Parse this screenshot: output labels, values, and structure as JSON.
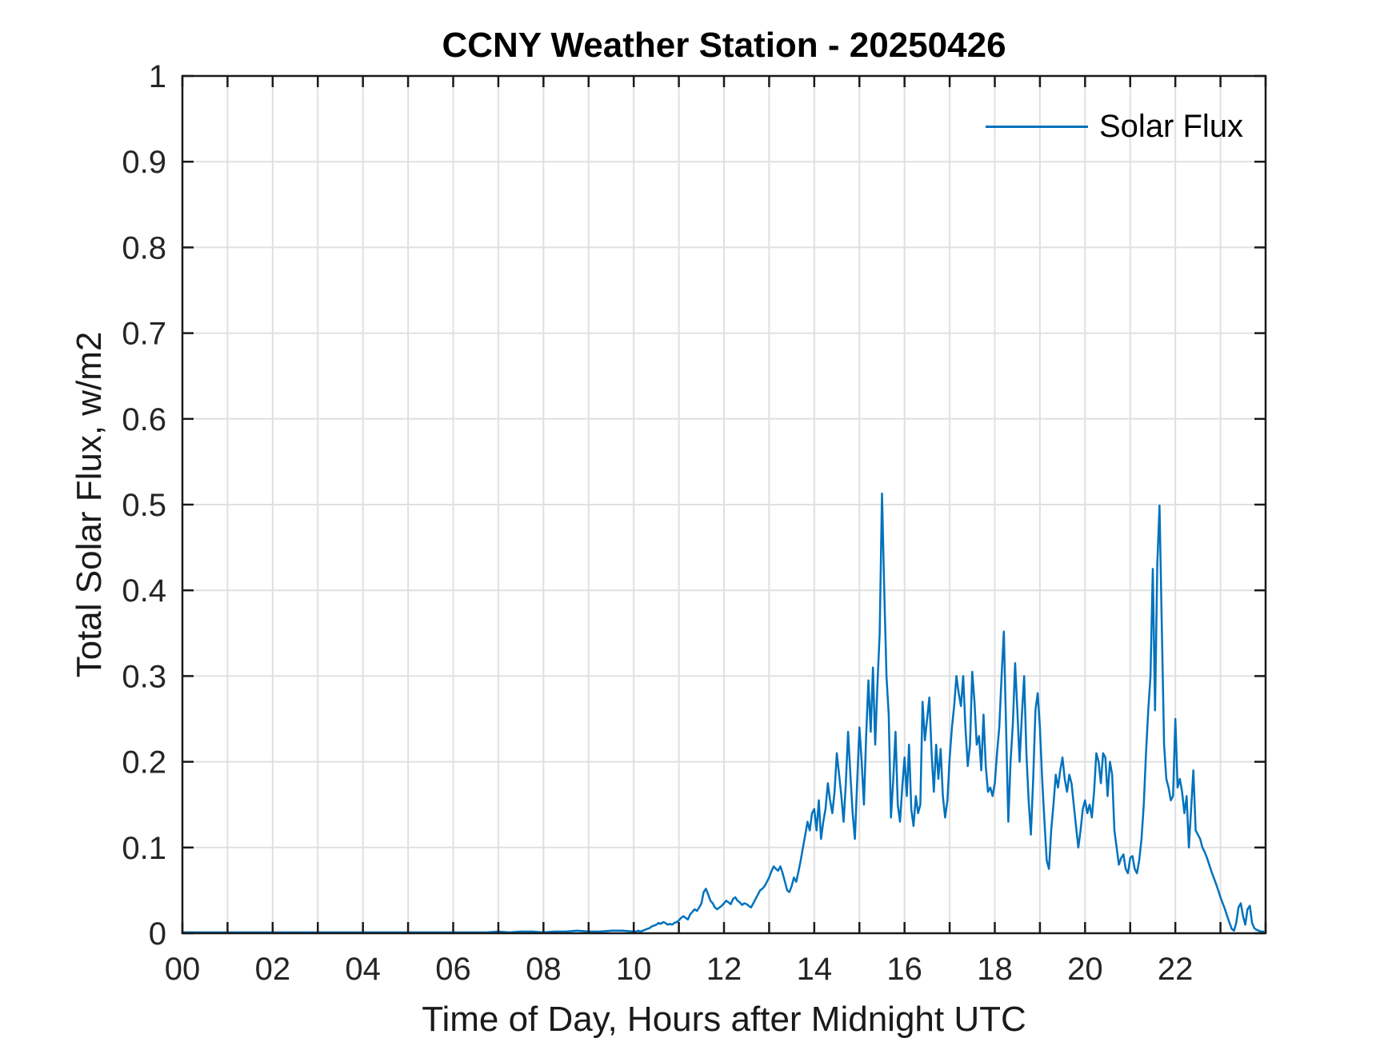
{
  "chart_data": {
    "type": "line",
    "title": "CCNY Weather Station - 20250426",
    "xlabel": "Time of Day, Hours after Midnight UTC",
    "ylabel": "Total Solar Flux, w/m2",
    "grid": true,
    "legend_position": "top-right-inside",
    "xlim": [
      0,
      24
    ],
    "ylim": [
      0,
      1
    ],
    "x_ticks": [
      {
        "v": 0,
        "label": "00"
      },
      {
        "v": 2,
        "label": "02"
      },
      {
        "v": 4,
        "label": "04"
      },
      {
        "v": 6,
        "label": "06"
      },
      {
        "v": 8,
        "label": "08"
      },
      {
        "v": 10,
        "label": "10"
      },
      {
        "v": 12,
        "label": "12"
      },
      {
        "v": 14,
        "label": "14"
      },
      {
        "v": 16,
        "label": "16"
      },
      {
        "v": 18,
        "label": "18"
      },
      {
        "v": 20,
        "label": "20"
      },
      {
        "v": 22,
        "label": "22"
      }
    ],
    "x_minor_tick_step": 1,
    "x_grid_step": 1,
    "y_ticks": [
      {
        "v": 0,
        "label": "0"
      },
      {
        "v": 0.1,
        "label": "0.1"
      },
      {
        "v": 0.2,
        "label": "0.2"
      },
      {
        "v": 0.3,
        "label": "0.3"
      },
      {
        "v": 0.4,
        "label": "0.4"
      },
      {
        "v": 0.5,
        "label": "0.5"
      },
      {
        "v": 0.6,
        "label": "0.6"
      },
      {
        "v": 0.7,
        "label": "0.7"
      },
      {
        "v": 0.8,
        "label": "0.8"
      },
      {
        "v": 0.9,
        "label": "0.9"
      },
      {
        "v": 1,
        "label": "1"
      }
    ],
    "colors": {
      "line": "#0072BD",
      "grid": "#e0e0e0",
      "axis": "#1a1a1a",
      "tick_text": "#252525"
    },
    "legend": [
      {
        "name": "Solar Flux",
        "color": "#0072BD"
      }
    ],
    "series": [
      {
        "name": "Solar Flux",
        "segments": [
          {
            "x_start": 0.0,
            "x_step": 0.25,
            "values": [
              0.001,
              0.001,
              0.001,
              0.001,
              0.001,
              0.001,
              0.001,
              0.001,
              0.001,
              0.001,
              0.001,
              0.001,
              0.001,
              0.001,
              0.001,
              0.001,
              0.001,
              0.001,
              0.001,
              0.001,
              0.001,
              0.001,
              0.001,
              0.001,
              0.001,
              0.001,
              0.001,
              0.001,
              0.002,
              0.001,
              0.002,
              0.002,
              0.001,
              0.002,
              0.002,
              0.003,
              0.002,
              0.002,
              0.003,
              0.003
            ]
          },
          {
            "x_start": 10.0,
            "x_step": 0.05,
            "values": [
              0.002,
              0.002,
              0.003,
              0.002,
              0.003,
              0.004,
              0.005,
              0.006,
              0.008,
              0.009,
              0.01,
              0.012,
              0.011,
              0.013,
              0.012,
              0.01,
              0.011,
              0.01,
              0.012,
              0.013,
              0.015,
              0.018,
              0.02,
              0.018,
              0.016,
              0.022,
              0.025,
              0.028,
              0.026,
              0.03,
              0.035,
              0.048,
              0.052,
              0.045,
              0.038,
              0.035,
              0.03,
              0.028,
              0.03,
              0.032,
              0.035,
              0.038,
              0.036,
              0.034,
              0.04,
              0.042,
              0.038,
              0.036,
              0.033,
              0.035,
              0.034,
              0.032,
              0.03,
              0.035,
              0.04,
              0.045,
              0.05,
              0.052,
              0.055,
              0.06,
              0.065,
              0.072,
              0.078,
              0.075,
              0.073,
              0.078,
              0.07,
              0.06,
              0.05,
              0.048,
              0.055,
              0.065,
              0.06,
              0.072,
              0.085,
              0.1,
              0.115,
              0.13,
              0.12,
              0.14,
              0.145,
              0.12,
              0.155,
              0.11,
              0.13,
              0.145,
              0.175,
              0.155,
              0.14,
              0.165,
              0.21,
              0.185,
              0.16,
              0.13,
              0.175,
              0.235,
              0.185,
              0.14,
              0.11,
              0.175,
              0.24,
              0.2,
              0.15,
              0.23,
              0.295,
              0.235,
              0.31,
              0.22,
              0.29,
              0.35,
              0.513,
              0.4,
              0.3,
              0.255,
              0.135,
              0.18,
              0.235,
              0.15,
              0.13,
              0.17,
              0.205,
              0.16,
              0.22,
              0.145,
              0.125,
              0.16,
              0.14,
              0.15,
              0.27,
              0.225,
              0.25,
              0.275,
              0.21,
              0.165,
              0.22,
              0.18,
              0.215,
              0.16,
              0.135,
              0.155,
              0.205,
              0.24,
              0.265,
              0.3,
              0.28,
              0.265,
              0.3,
              0.24,
              0.195,
              0.22,
              0.305,
              0.27,
              0.22,
              0.23,
              0.19,
              0.255,
              0.195,
              0.165,
              0.17,
              0.16,
              0.175,
              0.21,
              0.24,
              0.3,
              0.352,
              0.24,
              0.13,
              0.2,
              0.245,
              0.315,
              0.26,
              0.2,
              0.255,
              0.3,
              0.21,
              0.155,
              0.115,
              0.18,
              0.26,
              0.28,
              0.24,
              0.18,
              0.13,
              0.085,
              0.075,
              0.12,
              0.15,
              0.185,
              0.17,
              0.19,
              0.205,
              0.18,
              0.165,
              0.185,
              0.175,
              0.15,
              0.125,
              0.1,
              0.12,
              0.145,
              0.155,
              0.14,
              0.15,
              0.135,
              0.165,
              0.21,
              0.2,
              0.175,
              0.21,
              0.205,
              0.16,
              0.2,
              0.185,
              0.12,
              0.1,
              0.08,
              0.088,
              0.092,
              0.075,
              0.07,
              0.088,
              0.09,
              0.075,
              0.07,
              0.085,
              0.11,
              0.15,
              0.21,
              0.26,
              0.3,
              0.425,
              0.26,
              0.43,
              0.499,
              0.36,
              0.22,
              0.18,
              0.17,
              0.155,
              0.16,
              0.25,
              0.17,
              0.18,
              0.165,
              0.14,
              0.16,
              0.1,
              0.145,
              0.19,
              0.12,
              0.115,
              0.11,
              0.1,
              0.095,
              0.088,
              0.08,
              0.072,
              0.065,
              0.058,
              0.05,
              0.042,
              0.035,
              0.028,
              0.02,
              0.012,
              0.005,
              0.003,
              0.012,
              0.03,
              0.035,
              0.02,
              0.01,
              0.028,
              0.032,
              0.012,
              0.006,
              0.004,
              0.003,
              0.002,
              0.002
            ]
          }
        ]
      }
    ]
  }
}
